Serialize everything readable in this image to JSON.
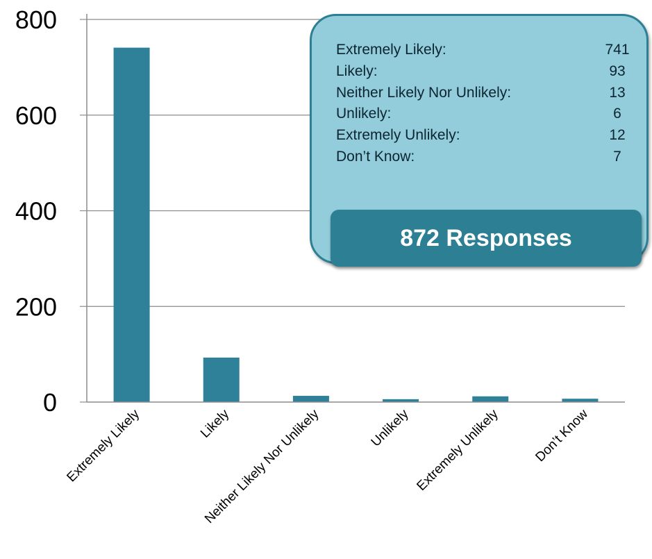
{
  "chart_data": {
    "type": "bar",
    "categories": [
      "Extremely Likely",
      "Likely",
      "Neither Likely Nor Unlikely",
      "Unlikely",
      "Extremely Unlikely",
      "Don’t Know"
    ],
    "values": [
      741,
      93,
      13,
      6,
      12,
      7
    ],
    "ylim": [
      0,
      800
    ],
    "yticks": [
      0,
      200,
      400,
      600,
      800
    ],
    "grid": true,
    "bar_color": "#2f8199"
  },
  "callout": {
    "rows": [
      {
        "label": "Extremely Likely:",
        "value": "741"
      },
      {
        "label": "Likely:",
        "value": "93"
      },
      {
        "label": "Neither Likely Nor Unlikely:",
        "value": "13"
      },
      {
        "label": "Unlikely:",
        "value": "6"
      },
      {
        "label": "Extremely Unlikely:",
        "value": "12"
      },
      {
        "label": "Don’t Know:",
        "value": "7"
      }
    ],
    "total": "872 Responses",
    "fill_color": "#93ccdb",
    "accent_color": "#2d7f93"
  }
}
